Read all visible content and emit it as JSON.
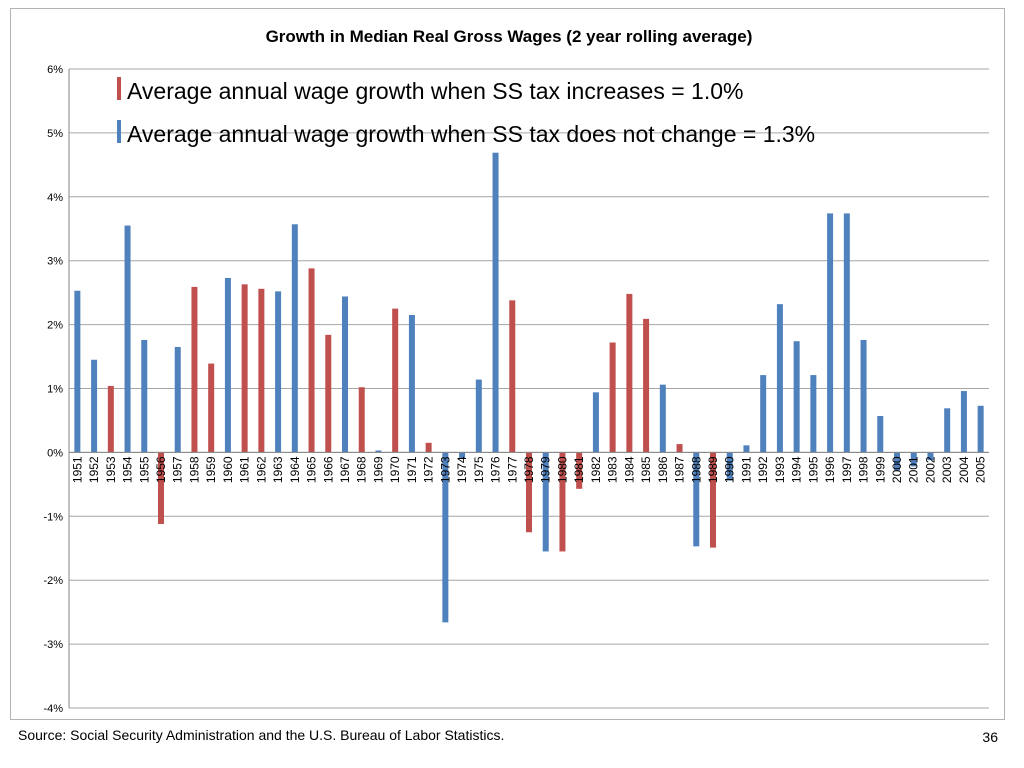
{
  "chart_data": {
    "type": "bar",
    "title": "Growth in Median Real Gross Wages (2 year rolling average)",
    "xlabel": "",
    "ylabel": "",
    "ylim": [
      -0.04,
      0.06
    ],
    "y_ticks": [
      "-4%",
      "-3%",
      "-2%",
      "-1%",
      "0%",
      "1%",
      "2%",
      "3%",
      "4%",
      "5%",
      "6%"
    ],
    "y_tick_values": [
      -0.04,
      -0.03,
      -0.02,
      -0.01,
      0,
      0.01,
      0.02,
      0.03,
      0.04,
      0.05,
      0.06
    ],
    "grid": true,
    "categories": [
      "1951",
      "1952",
      "1953",
      "1954",
      "1955",
      "1956",
      "1957",
      "1958",
      "1959",
      "1960",
      "1961",
      "1962",
      "1963",
      "1964",
      "1965",
      "1966",
      "1967",
      "1968",
      "1969",
      "1970",
      "1971",
      "1972",
      "1973",
      "1974",
      "1975",
      "1976",
      "1977",
      "1978",
      "1979",
      "1980",
      "1981",
      "1982",
      "1983",
      "1984",
      "1985",
      "1986",
      "1987",
      "1988",
      "1989",
      "1990",
      "1991",
      "1992",
      "1993",
      "1994",
      "1995",
      "1996",
      "1997",
      "1998",
      "1999",
      "2000",
      "2001",
      "2002",
      "2003",
      "2004",
      "2005"
    ],
    "values": [
      0.0253,
      0.0145,
      0.0104,
      0.0355,
      0.0176,
      -0.0112,
      0.0165,
      0.0259,
      0.0139,
      0.0273,
      0.0263,
      0.0256,
      0.0252,
      0.0357,
      0.0288,
      0.0184,
      0.0244,
      0.0102,
      0.0003,
      0.0225,
      0.0215,
      0.0015,
      -0.0266,
      -0.0009,
      0.0114,
      0.0469,
      0.0238,
      -0.0125,
      -0.0155,
      -0.0155,
      -0.0057,
      0.0094,
      0.0172,
      0.0248,
      0.0209,
      0.0106,
      0.0013,
      -0.0147,
      -0.0149,
      -0.0044,
      0.0011,
      0.0121,
      0.0232,
      0.0174,
      0.0121,
      0.0374,
      0.0374,
      0.0176,
      0.0057,
      -0.0028,
      -0.0022,
      -0.0012,
      0.0069,
      0.0096,
      0.0073
    ],
    "tax_change": [
      "none",
      "none",
      "increase",
      "none",
      "none",
      "increase",
      "none",
      "increase",
      "increase",
      "none",
      "increase",
      "increase",
      "none",
      "none",
      "increase",
      "increase",
      "none",
      "increase",
      "none",
      "increase",
      "none",
      "increase",
      "none",
      "none",
      "none",
      "none",
      "increase",
      "increase",
      "none",
      "increase",
      "increase",
      "none",
      "increase",
      "increase",
      "increase",
      "none",
      "increase",
      "none",
      "increase",
      "none",
      "none",
      "none",
      "none",
      "none",
      "none",
      "none",
      "none",
      "none",
      "none",
      "none",
      "none",
      "none",
      "none",
      "none",
      "none"
    ],
    "colors": {
      "increase": "#c0504d",
      "none": "#4f81bd"
    },
    "legend": {
      "position": "top-left",
      "items": [
        {
          "key": "increase",
          "label": "Average annual wage growth when SS tax increases = 1.0%"
        },
        {
          "key": "none",
          "label": "Average annual wage growth when SS tax does not change = 1.3%"
        }
      ]
    }
  },
  "footer": {
    "source": "Source:  Social Security Administration and the U.S. Bureau of Labor Statistics.",
    "page_number": "36"
  }
}
